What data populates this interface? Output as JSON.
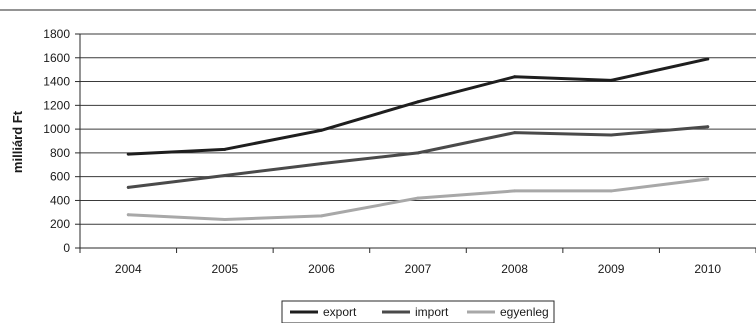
{
  "chart_data": {
    "type": "line",
    "title": "",
    "xlabel": "",
    "ylabel": "milliárd Ft",
    "x": [
      "2004",
      "2005",
      "2006",
      "2007",
      "2008",
      "2009",
      "2010"
    ],
    "ylim": [
      0,
      1800
    ],
    "yticks": [
      0,
      200,
      400,
      600,
      800,
      1000,
      1200,
      1400,
      1600,
      1800
    ],
    "grid": true,
    "legend_position": "bottom",
    "series": [
      {
        "name": "export",
        "values": [
          790,
          830,
          990,
          1230,
          1440,
          1410,
          1590
        ],
        "color": "#1e1e1e"
      },
      {
        "name": "import",
        "values": [
          510,
          610,
          710,
          800,
          970,
          950,
          1020
        ],
        "color": "#4a4a4a"
      },
      {
        "name": "egyenleg",
        "values": [
          280,
          240,
          270,
          420,
          480,
          480,
          580
        ],
        "color": "#a8a8a8"
      }
    ]
  }
}
